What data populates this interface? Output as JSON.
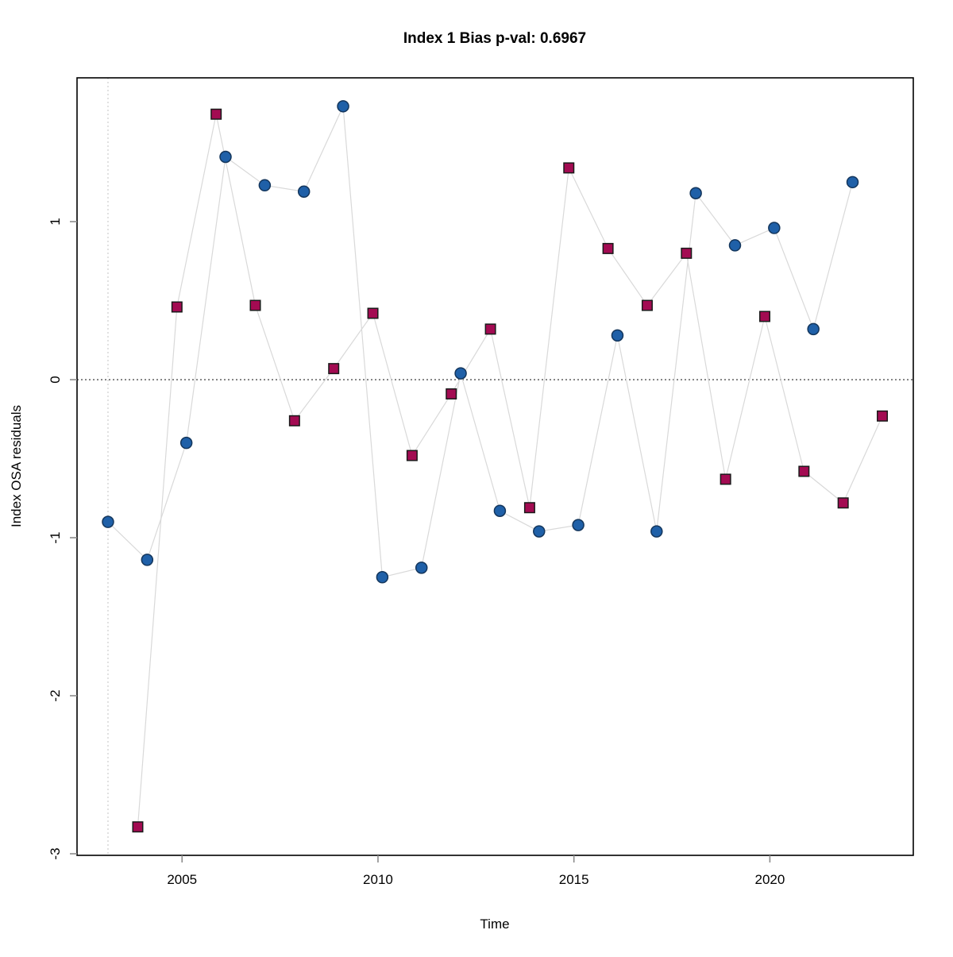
{
  "chart_data": {
    "type": "scatter",
    "title": "Index 1 Bias p-val: 0.6967",
    "title_color": "#228B22",
    "xlabel": "Time",
    "ylabel": "Index OSA residuals",
    "xlim": [
      2002.32,
      2023.66
    ],
    "ylim": [
      -3.01,
      1.91
    ],
    "x_ticks": [
      2005,
      2010,
      2015,
      2020
    ],
    "y_ticks": [
      1,
      0,
      -1,
      -2,
      -3
    ],
    "grid": "off",
    "legend": "none",
    "reference_lines": {
      "horizontal_zero_line": {
        "y": 0,
        "style": "dotted",
        "color": "#4d4d4d"
      },
      "vertical_start_line": {
        "x": 2003.11,
        "style": "dotted",
        "color": "#cccccc"
      }
    },
    "line_color": "#d9d9d9",
    "series": [
      {
        "name": "index-circles",
        "marker": "circle",
        "fill": "#1f60a8",
        "stroke": "#14365c",
        "x": [
          2003.11,
          2004.11,
          2005.11,
          2006.11,
          2007.11,
          2008.11,
          2009.11,
          2010.11,
          2011.11,
          2012.11,
          2013.11,
          2014.11,
          2015.11,
          2016.11,
          2017.11,
          2018.11,
          2019.11,
          2020.11,
          2021.11,
          2022.11
        ],
        "y": [
          -0.9,
          -1.14,
          -0.4,
          1.41,
          1.23,
          1.19,
          1.73,
          -1.25,
          -1.19,
          0.04,
          -0.83,
          -0.96,
          -0.92,
          0.28,
          -0.96,
          1.18,
          0.85,
          0.96,
          0.32,
          1.25
        ]
      },
      {
        "name": "index-squares",
        "marker": "square",
        "fill": "#a30b52",
        "stroke": "#1a1a1a",
        "x": [
          2003.87,
          2004.87,
          2005.87,
          2006.87,
          2007.87,
          2008.87,
          2009.87,
          2010.87,
          2011.87,
          2012.87,
          2013.87,
          2014.87,
          2015.87,
          2016.87,
          2017.87,
          2018.87,
          2019.87,
          2020.87,
          2021.87,
          2022.87
        ],
        "y": [
          -2.83,
          0.46,
          1.68,
          0.47,
          -0.26,
          0.07,
          0.42,
          -0.48,
          -0.09,
          0.32,
          -0.81,
          1.34,
          0.83,
          0.47,
          0.8,
          -0.63,
          0.4,
          -0.58,
          -0.78,
          -0.23
        ]
      }
    ]
  }
}
